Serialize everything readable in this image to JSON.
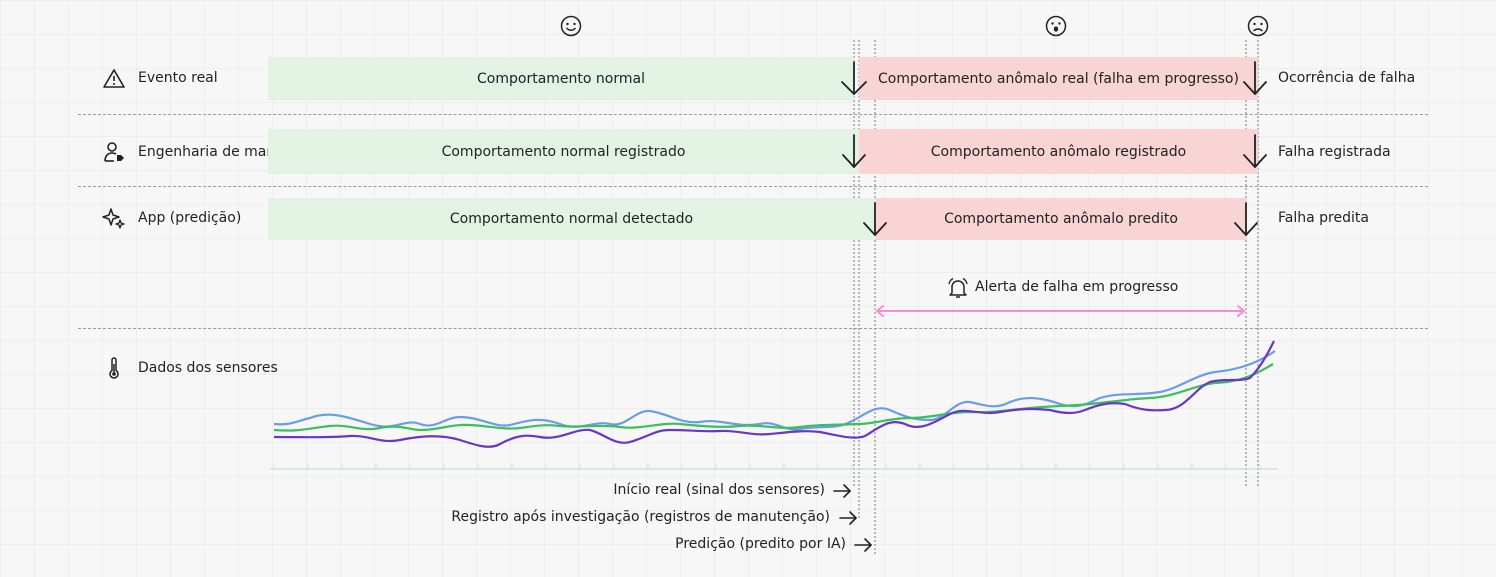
{
  "rows": [
    {
      "label": "Evento real",
      "icon": "warning-icon",
      "normal": "Comportamento normal",
      "anomalous": "Comportamento anômalo real (falha em progresso)",
      "end": "Ocorrência de falha"
    },
    {
      "label": "Engenharia de manutenção",
      "icon": "maintenance-engineer-icon",
      "normal": "Comportamento normal registrado",
      "anomalous": "Comportamento anômalo registrado",
      "end": "Falha registrada"
    },
    {
      "label": "App (predição)",
      "icon": "sparkles-icon",
      "normal": "Comportamento normal detectado",
      "anomalous": "Comportamento anômalo predito",
      "end": "Falha predita"
    }
  ],
  "faces": [
    "smile-face-icon",
    "surprised-face-icon",
    "sad-face-icon"
  ],
  "alert": {
    "label": "Alerta de falha em progresso",
    "icon": "bell-alert-icon"
  },
  "sensors": {
    "label": "Dados dos sensores",
    "icon": "thermometer-icon"
  },
  "footnotes": [
    "Início real (sinal dos sensores)",
    "Registro após investigação (registros de manutenção)",
    "Predição (predito por IA)"
  ],
  "colors": {
    "normal_band": "#e2f3e3",
    "anomalous_band": "#f8d4d4",
    "alert_arrow": "#f48fd0",
    "series_blue": "#6a9de8",
    "series_green": "#3cbf5a",
    "series_purple": "#6a35c8"
  }
}
